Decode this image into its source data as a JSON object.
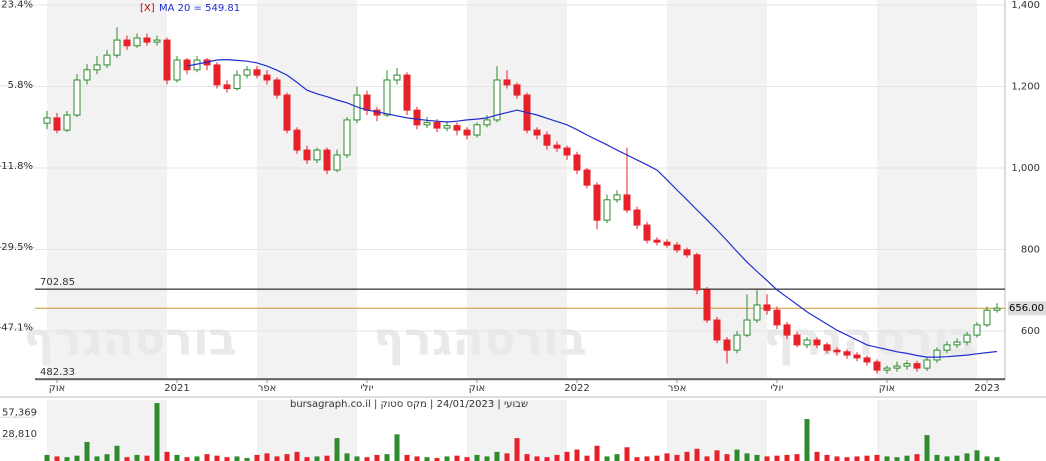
{
  "chart_data": {
    "type": "candlestick",
    "legend_marker": "[X]",
    "legend": "MA 20 = 549.81",
    "watermark": "בורסהגרף",
    "footer": "שבועי | 24/01/2023 | מקס סטוק | bursagraph.co.il",
    "categories": [
      null,
      "אוק",
      null,
      null,
      null,
      null,
      null,
      null,
      null,
      null,
      null,
      null,
      null,
      "2021",
      null,
      null,
      null,
      null,
      null,
      null,
      null,
      null,
      "אפר",
      null,
      null,
      null,
      null,
      null,
      null,
      null,
      null,
      null,
      "יולי",
      null,
      null,
      null,
      null,
      null,
      null,
      null,
      null,
      null,
      null,
      "אוק",
      null,
      null,
      null,
      null,
      null,
      null,
      null,
      null,
      null,
      "2022",
      null,
      null,
      null,
      null,
      null,
      null,
      null,
      null,
      null,
      "אפר",
      null,
      null,
      null,
      null,
      null,
      null,
      null,
      null,
      null,
      "יולי",
      null,
      null,
      null,
      null,
      null,
      null,
      null,
      null,
      null,
      null,
      "אוק",
      null,
      null,
      null,
      null,
      null,
      null,
      null,
      null,
      null,
      "2023",
      null
    ],
    "open": [
      1110,
      1123,
      1093,
      1130,
      1216,
      1241,
      1253,
      1277,
      1314,
      1300,
      1319,
      1309,
      1314,
      1216,
      1265,
      1241,
      1265,
      1253,
      1204,
      1195,
      1228,
      1241,
      1228,
      1216,
      1179,
      1093,
      1044,
      1020,
      1044,
      995,
      1032,
      1118,
      1179,
      1142,
      1130,
      1216,
      1228,
      1142,
      1106,
      1112,
      1098,
      1104,
      1093,
      1081,
      1106,
      1118,
      1216,
      1204,
      1179,
      1093,
      1081,
      1056,
      1049,
      1032,
      995,
      958,
      872,
      922,
      934,
      897,
      860,
      823,
      818,
      811,
      799,
      787,
      701,
      627,
      578,
      553,
      590,
      627,
      664,
      651,
      615,
      590,
      566,
      578,
      566,
      553,
      549,
      541,
      534,
      524,
      504,
      509,
      514,
      520,
      509,
      529,
      553,
      566,
      573,
      590,
      615,
      651
    ],
    "high": [
      1140,
      1135,
      1140,
      1230,
      1255,
      1275,
      1290,
      1345,
      1325,
      1330,
      1330,
      1325,
      1320,
      1275,
      1270,
      1275,
      1270,
      1260,
      1215,
      1240,
      1250,
      1250,
      1240,
      1222,
      1185,
      1100,
      1055,
      1050,
      1050,
      1045,
      1125,
      1200,
      1190,
      1150,
      1240,
      1245,
      1235,
      1150,
      1125,
      1120,
      1115,
      1112,
      1100,
      1112,
      1130,
      1250,
      1240,
      1210,
      1185,
      1100,
      1090,
      1065,
      1055,
      1040,
      1000,
      965,
      935,
      945,
      1050,
      905,
      868,
      830,
      825,
      818,
      805,
      792,
      708,
      635,
      585,
      600,
      690,
      700,
      690,
      660,
      622,
      598,
      585,
      584,
      572,
      560,
      555,
      548,
      540,
      530,
      515,
      525,
      528,
      527,
      535,
      560,
      575,
      582,
      598,
      622,
      660,
      668
    ],
    "low": [
      1095,
      1085,
      1088,
      1125,
      1205,
      1230,
      1245,
      1270,
      1290,
      1295,
      1300,
      1300,
      1205,
      1210,
      1230,
      1235,
      1240,
      1195,
      1185,
      1190,
      1220,
      1220,
      1205,
      1170,
      1085,
      1035,
      1010,
      1012,
      985,
      990,
      1025,
      1110,
      1130,
      1115,
      1125,
      1205,
      1130,
      1095,
      1098,
      1088,
      1090,
      1080,
      1070,
      1075,
      1100,
      1112,
      1195,
      1170,
      1085,
      1070,
      1045,
      1040,
      1020,
      985,
      950,
      850,
      865,
      915,
      890,
      850,
      815,
      810,
      805,
      792,
      780,
      690,
      620,
      570,
      520,
      545,
      585,
      620,
      640,
      605,
      580,
      560,
      558,
      558,
      545,
      540,
      532,
      526,
      515,
      495,
      495,
      500,
      505,
      500,
      502,
      522,
      545,
      558,
      565,
      584,
      610,
      645
    ],
    "close": [
      1123,
      1093,
      1130,
      1216,
      1241,
      1253,
      1277,
      1314,
      1300,
      1319,
      1309,
      1314,
      1216,
      1265,
      1241,
      1265,
      1253,
      1204,
      1195,
      1228,
      1241,
      1228,
      1216,
      1179,
      1093,
      1044,
      1020,
      1044,
      995,
      1032,
      1118,
      1179,
      1142,
      1130,
      1216,
      1228,
      1142,
      1106,
      1112,
      1098,
      1104,
      1093,
      1081,
      1106,
      1118,
      1216,
      1204,
      1179,
      1093,
      1081,
      1056,
      1049,
      1032,
      995,
      958,
      872,
      922,
      934,
      897,
      860,
      823,
      818,
      811,
      799,
      787,
      701,
      627,
      578,
      553,
      590,
      627,
      664,
      651,
      615,
      590,
      566,
      578,
      566,
      553,
      549,
      541,
      534,
      524,
      504,
      509,
      514,
      520,
      509,
      529,
      553,
      566,
      573,
      590,
      615,
      651,
      656
    ],
    "ma": [
      null,
      null,
      null,
      null,
      null,
      null,
      null,
      null,
      null,
      null,
      null,
      null,
      null,
      null,
      1250,
      1255,
      1260,
      1265,
      1266,
      1264,
      1262,
      1258,
      1250,
      1240,
      1228,
      1210,
      1191,
      1182,
      1175,
      1167,
      1160,
      1150,
      1142,
      1138,
      1133,
      1128,
      1123,
      1120,
      1117,
      1115,
      1113,
      1115,
      1118,
      1120,
      1123,
      1130,
      1136,
      1142,
      1136,
      1130,
      1122,
      1114,
      1106,
      1094,
      1081,
      1069,
      1057,
      1044,
      1032,
      1020,
      1008,
      995,
      971,
      946,
      922,
      897,
      873,
      848,
      822,
      795,
      769,
      746,
      724,
      701,
      683,
      665,
      647,
      632,
      617,
      602,
      590,
      578,
      566,
      560,
      555,
      549,
      545,
      540,
      536,
      536,
      537,
      539,
      541,
      544,
      547,
      549.81
    ],
    "ma_color": "#1f2fd0",
    "up_color": "#2e8b2e",
    "down_color": "#e8202a",
    "volume": [
      8000,
      6000,
      5000,
      7000,
      25000,
      6000,
      9000,
      20000,
      5000,
      8000,
      7000,
      76000,
      12000,
      8000,
      5000,
      6000,
      9000,
      7000,
      5000,
      6000,
      4000,
      8000,
      10000,
      6000,
      9000,
      12000,
      5000,
      6000,
      7000,
      30000,
      10000,
      6000,
      5000,
      8000,
      9000,
      35000,
      8000,
      6000,
      5000,
      4000,
      6000,
      7000,
      5000,
      8000,
      6000,
      12000,
      10000,
      30000,
      9000,
      6000,
      5000,
      8000,
      12000,
      15000,
      7000,
      20000,
      6000,
      9000,
      18000,
      5000,
      6000,
      7000,
      10000,
      8000,
      12000,
      16000,
      6000,
      14000,
      9000,
      15000,
      10000,
      8000,
      6000,
      7000,
      8000,
      9000,
      55000,
      12000,
      8000,
      6000,
      5000,
      6000,
      7000,
      8000,
      6000,
      5000,
      7000,
      9000,
      34000,
      8000,
      6000,
      7000,
      10000,
      14000,
      6000,
      5000
    ],
    "ylim": [
      479.8,
      1412.3
    ],
    "yticks": [
      {
        "value": 600,
        "label": "600"
      },
      {
        "value": 800,
        "label": "800"
      },
      {
        "value": 1000,
        "label": "1,000"
      },
      {
        "value": 1200,
        "label": "1,200"
      },
      {
        "value": 1400,
        "label": "1,400"
      }
    ],
    "y2lim": [
      -58.4,
      24.5
    ],
    "y2ticks": [
      {
        "value": 23.4,
        "label": "23.4%"
      },
      {
        "value": 5.8,
        "label": "5.8%"
      },
      {
        "value": -11.8,
        "label": "-11.8%"
      },
      {
        "value": -29.5,
        "label": "-29.5%"
      },
      {
        "value": -47.1,
        "label": "-47.1%"
      }
    ],
    "hlines": [
      702.85,
      482.33
    ],
    "last_price": {
      "value": 656,
      "label": "656.00"
    },
    "last_color": "#c8962c",
    "vlim": [
      0,
      80000
    ],
    "vticks": [
      {
        "value": 57369,
        "label": "57,369"
      },
      {
        "value": 28810,
        "label": "28,810"
      }
    ],
    "grid": true
  }
}
